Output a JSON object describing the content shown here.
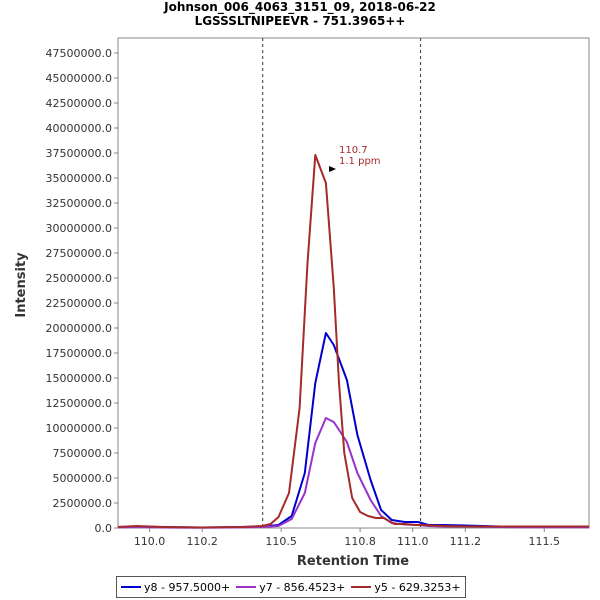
{
  "chart_data": {
    "type": "line",
    "title": "Johnson_006_4063_3151_09, 2018-06-22",
    "subtitle": "LGSSSLTNIPEEVR - 751.3965++",
    "xlabel": "Retention Time",
    "ylabel": "Intensity",
    "xlim": [
      109.88,
      111.67
    ],
    "ylim": [
      0,
      49000000
    ],
    "x_ticks": [
      110.0,
      110.2,
      110.5,
      110.8,
      111.0,
      111.2,
      111.5
    ],
    "x_tick_labels": [
      "110.0",
      "110.2",
      "110.5",
      "110.8",
      "111.0",
      "111.2",
      "111.5"
    ],
    "y_ticks": [
      0,
      2500000,
      5000000,
      7500000,
      10000000,
      12500000,
      15000000,
      17500000,
      20000000,
      22500000,
      25000000,
      27500000,
      30000000,
      32500000,
      35000000,
      37500000,
      40000000,
      42500000,
      45000000,
      47500000
    ],
    "y_tick_labels": [
      "0.0",
      "2500000.0",
      "5000000.0",
      "7500000.0",
      "10000000.0",
      "12500000.0",
      "15000000.0",
      "17500000.0",
      "20000000.0",
      "22500000.0",
      "25000000.0",
      "27500000.0",
      "30000000.0",
      "32500000.0",
      "35000000.0",
      "37500000.0",
      "40000000.0",
      "42500000.0",
      "45000000.0",
      "47500000.0"
    ],
    "vertical_markers": [
      110.43,
      111.03
    ],
    "grid": false,
    "legend_position": "bottom",
    "annotation": {
      "lines": [
        "110.7",
        "1.1 ppm"
      ],
      "x": 110.72,
      "y": 37300000
    },
    "series": [
      {
        "name": "y8 - 957.5000+",
        "color": "#0000cc",
        "x": [
          109.88,
          109.95,
          110.05,
          110.2,
          110.35,
          110.43,
          110.49,
          110.54,
          110.59,
          110.63,
          110.67,
          110.7,
          110.75,
          110.79,
          110.84,
          110.88,
          110.92,
          110.97,
          111.02,
          111.06,
          111.12,
          111.2,
          111.4,
          111.67
        ],
        "y": [
          100000,
          150000,
          100000,
          50000,
          100000,
          150000,
          300000,
          1200000,
          5500000,
          14500000,
          19500000,
          18300000,
          14800000,
          9300000,
          4800000,
          1800000,
          800000,
          600000,
          600000,
          300000,
          300000,
          250000,
          100000,
          100000
        ]
      },
      {
        "name": "y7 - 856.4523+",
        "color": "#9933cc",
        "x": [
          109.88,
          109.95,
          110.05,
          110.2,
          110.35,
          110.43,
          110.49,
          110.54,
          110.59,
          110.63,
          110.67,
          110.7,
          110.75,
          110.79,
          110.84,
          110.88,
          110.92,
          110.97,
          111.02,
          111.06,
          111.12,
          111.2,
          111.4,
          111.67
        ],
        "y": [
          50000,
          100000,
          50000,
          30000,
          60000,
          100000,
          200000,
          900000,
          3500000,
          8500000,
          11000000,
          10600000,
          8600000,
          5500000,
          2800000,
          1200000,
          500000,
          350000,
          300000,
          200000,
          150000,
          150000,
          80000,
          80000
        ]
      },
      {
        "name": "y5 - 629.3253+",
        "color": "#a52a2a",
        "x": [
          109.88,
          109.95,
          110.05,
          110.2,
          110.35,
          110.43,
          110.46,
          110.49,
          110.53,
          110.57,
          110.6,
          110.63,
          110.67,
          110.7,
          110.72,
          110.74,
          110.77,
          110.8,
          110.83,
          110.86,
          110.89,
          110.93,
          110.97,
          111.01,
          111.04,
          111.07,
          111.12,
          111.2,
          111.4,
          111.67
        ],
        "y": [
          100000,
          200000,
          100000,
          50000,
          100000,
          200000,
          400000,
          1100000,
          3500000,
          12000000,
          26500000,
          37300000,
          34500000,
          24000000,
          14500000,
          7500000,
          3000000,
          1600000,
          1200000,
          1000000,
          1000000,
          400000,
          400000,
          300000,
          300000,
          250000,
          200000,
          150000,
          150000,
          150000
        ]
      }
    ]
  }
}
